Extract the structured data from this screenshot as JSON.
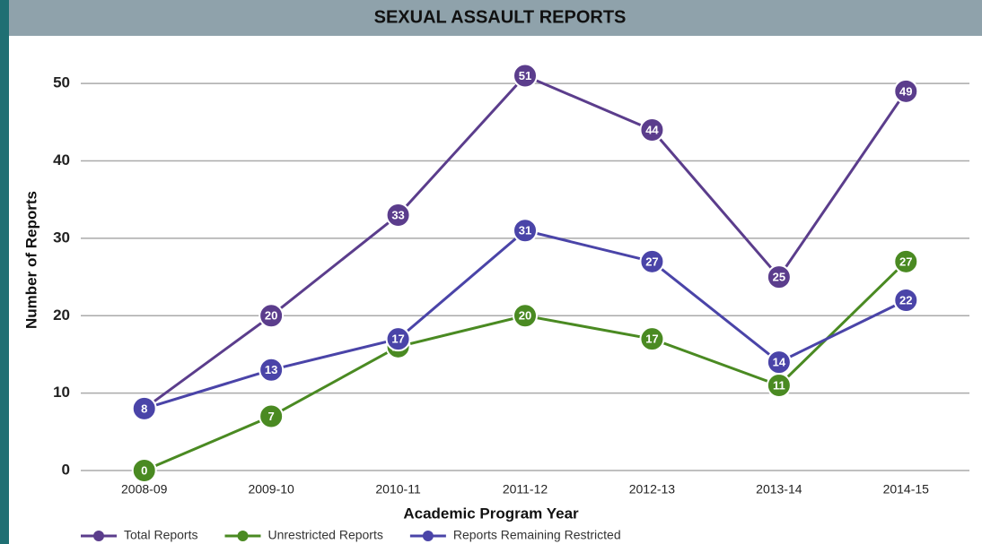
{
  "chart_data": {
    "type": "line",
    "title": "SEXUAL ASSAULT REPORTS",
    "x_label": "Academic Program Year",
    "y_label": "Number of Reports",
    "categories": [
      "2008-09",
      "2009-10",
      "2010-11",
      "2011-12",
      "2012-13",
      "2013-14",
      "2014-15"
    ],
    "series": [
      {
        "name": "Total Reports",
        "color": "#5b3d8c",
        "values": [
          8,
          20,
          33,
          51,
          44,
          25,
          49
        ]
      },
      {
        "name": "Unrestricted Reports",
        "color": "#4a8a22",
        "values": [
          0,
          7,
          16,
          20,
          17,
          11,
          27
        ]
      },
      {
        "name": "Reports Remaining Restricted",
        "color": "#4a44a8",
        "values": [
          8,
          13,
          17,
          31,
          27,
          14,
          22
        ]
      }
    ],
    "ylim": [
      0,
      55
    ],
    "yticks": [
      0,
      10,
      20,
      30,
      40,
      50
    ],
    "grid": true
  }
}
